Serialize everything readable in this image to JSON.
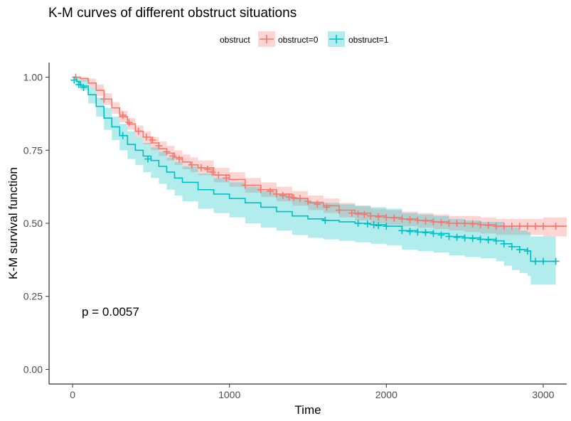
{
  "chart_data": {
    "type": "line",
    "title": "K-M curves of different obstruct situations",
    "xlabel": "Time",
    "ylabel": "K-M survival function",
    "xlim": [
      -150,
      3150
    ],
    "ylim": [
      -0.05,
      1.05
    ],
    "x_ticks": [
      0,
      1000,
      2000,
      3000
    ],
    "x_tick_labels": [
      "0",
      "1000",
      "2000",
      "3000"
    ],
    "y_ticks": [
      0,
      0.25,
      0.5,
      0.75,
      1.0
    ],
    "y_tick_labels": [
      "0.00",
      "0.25",
      "0.50",
      "0.75",
      "1.00"
    ],
    "grid": false,
    "legend": {
      "title": "obstruct",
      "placement": "top",
      "entries": [
        "obstruct=0",
        "obstruct=1"
      ]
    },
    "annotation": "p = 0.0057",
    "series": [
      {
        "name": "obstruct=0",
        "color": "#F8766D",
        "x": [
          0,
          50,
          100,
          150,
          200,
          250,
          300,
          350,
          400,
          450,
          500,
          550,
          600,
          650,
          700,
          750,
          800,
          900,
          1000,
          1100,
          1200,
          1300,
          1400,
          1500,
          1600,
          1700,
          1800,
          1900,
          2000,
          2100,
          2200,
          2300,
          2400,
          2500,
          2600,
          2700,
          2800,
          2900,
          3000,
          3100,
          3150
        ],
        "y": [
          1.0,
          0.995,
          0.98,
          0.955,
          0.925,
          0.895,
          0.865,
          0.84,
          0.815,
          0.795,
          0.775,
          0.755,
          0.74,
          0.725,
          0.71,
          0.7,
          0.69,
          0.665,
          0.65,
          0.63,
          0.615,
          0.6,
          0.585,
          0.57,
          0.56,
          0.545,
          0.535,
          0.525,
          0.52,
          0.515,
          0.51,
          0.505,
          0.5,
          0.5,
          0.495,
          0.49,
          0.49,
          0.49,
          0.49,
          0.49,
          0.49
        ],
        "lower": [
          1.0,
          0.985,
          0.965,
          0.935,
          0.905,
          0.875,
          0.845,
          0.82,
          0.795,
          0.77,
          0.75,
          0.73,
          0.715,
          0.7,
          0.685,
          0.675,
          0.665,
          0.64,
          0.625,
          0.605,
          0.59,
          0.575,
          0.56,
          0.545,
          0.535,
          0.52,
          0.51,
          0.5,
          0.495,
          0.49,
          0.485,
          0.48,
          0.475,
          0.47,
          0.465,
          0.46,
          0.46,
          0.46,
          0.455,
          0.455,
          0.455
        ],
        "upper": [
          1.0,
          1.0,
          0.995,
          0.975,
          0.945,
          0.915,
          0.885,
          0.86,
          0.835,
          0.815,
          0.795,
          0.78,
          0.765,
          0.75,
          0.735,
          0.725,
          0.715,
          0.69,
          0.675,
          0.655,
          0.64,
          0.625,
          0.61,
          0.595,
          0.585,
          0.57,
          0.56,
          0.55,
          0.545,
          0.54,
          0.535,
          0.53,
          0.525,
          0.525,
          0.52,
          0.515,
          0.515,
          0.515,
          0.52,
          0.52,
          0.52
        ],
        "censor_x": [
          20,
          200,
          320,
          360,
          420,
          470,
          510,
          550,
          600,
          640,
          680,
          760,
          820,
          860,
          890,
          930,
          980,
          1100,
          1200,
          1260,
          1300,
          1340,
          1380,
          1410,
          1450,
          1500,
          1560,
          1620,
          1700,
          1780,
          1820,
          1860,
          1900,
          1950,
          2000,
          2050,
          2100,
          2150,
          2200,
          2250,
          2300,
          2350,
          2400,
          2450,
          2500,
          2550,
          2600,
          2650,
          2700,
          2750,
          2800,
          2850,
          2900,
          2950,
          3000,
          3080
        ],
        "censor_y": [
          1.0,
          0.925,
          0.87,
          0.845,
          0.815,
          0.795,
          0.785,
          0.765,
          0.745,
          0.73,
          0.72,
          0.7,
          0.69,
          0.685,
          0.675,
          0.665,
          0.655,
          0.63,
          0.615,
          0.61,
          0.6,
          0.595,
          0.59,
          0.588,
          0.585,
          0.575,
          0.565,
          0.555,
          0.545,
          0.535,
          0.532,
          0.53,
          0.525,
          0.522,
          0.52,
          0.518,
          0.515,
          0.512,
          0.51,
          0.508,
          0.505,
          0.503,
          0.5,
          0.5,
          0.5,
          0.498,
          0.495,
          0.493,
          0.49,
          0.49,
          0.49,
          0.49,
          0.49,
          0.49,
          0.49,
          0.49
        ]
      },
      {
        "name": "obstruct=1",
        "color": "#00BFC4",
        "x": [
          0,
          25,
          50,
          100,
          150,
          200,
          250,
          300,
          350,
          400,
          450,
          500,
          550,
          600,
          650,
          700,
          800,
          900,
          1000,
          1100,
          1200,
          1300,
          1400,
          1500,
          1600,
          1700,
          1800,
          1900,
          2000,
          2100,
          2200,
          2300,
          2400,
          2500,
          2600,
          2700,
          2750,
          2800,
          2850,
          2900,
          2920,
          3000,
          3080
        ],
        "y": [
          1.0,
          0.985,
          0.97,
          0.94,
          0.9,
          0.86,
          0.83,
          0.8,
          0.77,
          0.75,
          0.73,
          0.715,
          0.695,
          0.675,
          0.655,
          0.64,
          0.615,
          0.6,
          0.585,
          0.57,
          0.555,
          0.54,
          0.525,
          0.515,
          0.51,
          0.505,
          0.5,
          0.495,
          0.49,
          0.475,
          0.47,
          0.465,
          0.455,
          0.45,
          0.445,
          0.44,
          0.43,
          0.42,
          0.41,
          0.405,
          0.37,
          0.37,
          0.37
        ],
        "lower": [
          1.0,
          0.97,
          0.955,
          0.91,
          0.865,
          0.82,
          0.785,
          0.75,
          0.72,
          0.7,
          0.675,
          0.655,
          0.635,
          0.615,
          0.595,
          0.575,
          0.55,
          0.535,
          0.52,
          0.5,
          0.485,
          0.475,
          0.46,
          0.45,
          0.445,
          0.44,
          0.435,
          0.43,
          0.425,
          0.41,
          0.405,
          0.4,
          0.39,
          0.385,
          0.38,
          0.37,
          0.355,
          0.34,
          0.33,
          0.32,
          0.29,
          0.29,
          0.29
        ],
        "upper": [
          1.0,
          1.0,
          0.99,
          0.965,
          0.93,
          0.895,
          0.865,
          0.84,
          0.815,
          0.795,
          0.775,
          0.76,
          0.745,
          0.725,
          0.71,
          0.695,
          0.67,
          0.655,
          0.64,
          0.625,
          0.61,
          0.6,
          0.585,
          0.575,
          0.57,
          0.565,
          0.56,
          0.555,
          0.55,
          0.535,
          0.53,
          0.525,
          0.515,
          0.51,
          0.505,
          0.505,
          0.49,
          0.485,
          0.475,
          0.47,
          0.455,
          0.455,
          0.455
        ],
        "censor_x": [
          10,
          40,
          70,
          320,
          480,
          1610,
          1820,
          1880,
          1920,
          1950,
          2000,
          2100,
          2150,
          2200,
          2250,
          2300,
          2350,
          2400,
          2450,
          2500,
          2550,
          2600,
          2650,
          2700,
          2750,
          2800,
          2850,
          2900,
          2950,
          3000,
          3080
        ],
        "censor_y": [
          0.99,
          0.975,
          0.965,
          0.8,
          0.72,
          0.51,
          0.5,
          0.498,
          0.495,
          0.492,
          0.49,
          0.475,
          0.472,
          0.47,
          0.468,
          0.465,
          0.46,
          0.455,
          0.452,
          0.45,
          0.448,
          0.445,
          0.443,
          0.44,
          0.43,
          0.42,
          0.41,
          0.405,
          0.37,
          0.37,
          0.37
        ]
      }
    ]
  }
}
